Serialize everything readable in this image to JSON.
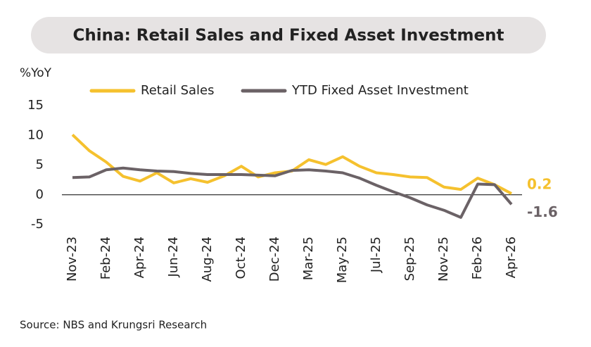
{
  "chart_data": {
    "type": "line",
    "title": "China: Retail Sales and Fixed Asset Investment",
    "y_label": "%YoY",
    "source": "Source: NBS and Krungsri Research",
    "categories": [
      "Nov-23",
      null,
      "Feb-24",
      null,
      "Apr-24",
      null,
      "Jun-24",
      null,
      "Aug-24",
      null,
      "Oct-24",
      null,
      "Dec-24",
      null,
      "Mar-25",
      null,
      "May-25",
      null,
      "Jul-25",
      null,
      "Sep-25",
      null,
      "Nov-25",
      null,
      "Feb-26",
      null,
      "Apr-26"
    ],
    "series": [
      {
        "name": "Retail Sales",
        "color": "#f5c12e",
        "values": [
          10.1,
          7.4,
          5.5,
          3.1,
          2.3,
          3.7,
          2.0,
          2.7,
          2.1,
          3.2,
          4.8,
          3.0,
          3.7,
          4.0,
          5.9,
          5.1,
          6.4,
          4.8,
          3.7,
          3.4,
          3.0,
          2.9,
          1.3,
          0.9,
          2.8,
          1.7,
          0.2
        ]
      },
      {
        "name": "YTD Fixed Asset Investment",
        "color": "#6b6266",
        "values": [
          2.9,
          3.0,
          4.2,
          4.5,
          4.2,
          4.0,
          3.9,
          3.6,
          3.4,
          3.4,
          3.4,
          3.3,
          3.2,
          4.1,
          4.2,
          4.0,
          3.7,
          2.8,
          1.6,
          0.5,
          -0.5,
          -1.7,
          -2.6,
          -3.8,
          1.8,
          1.7,
          -1.6
        ]
      }
    ],
    "ylim": [
      -5,
      15
    ],
    "yticks": [
      15,
      10,
      5,
      0,
      -5
    ],
    "grid": false,
    "legend": "top"
  }
}
